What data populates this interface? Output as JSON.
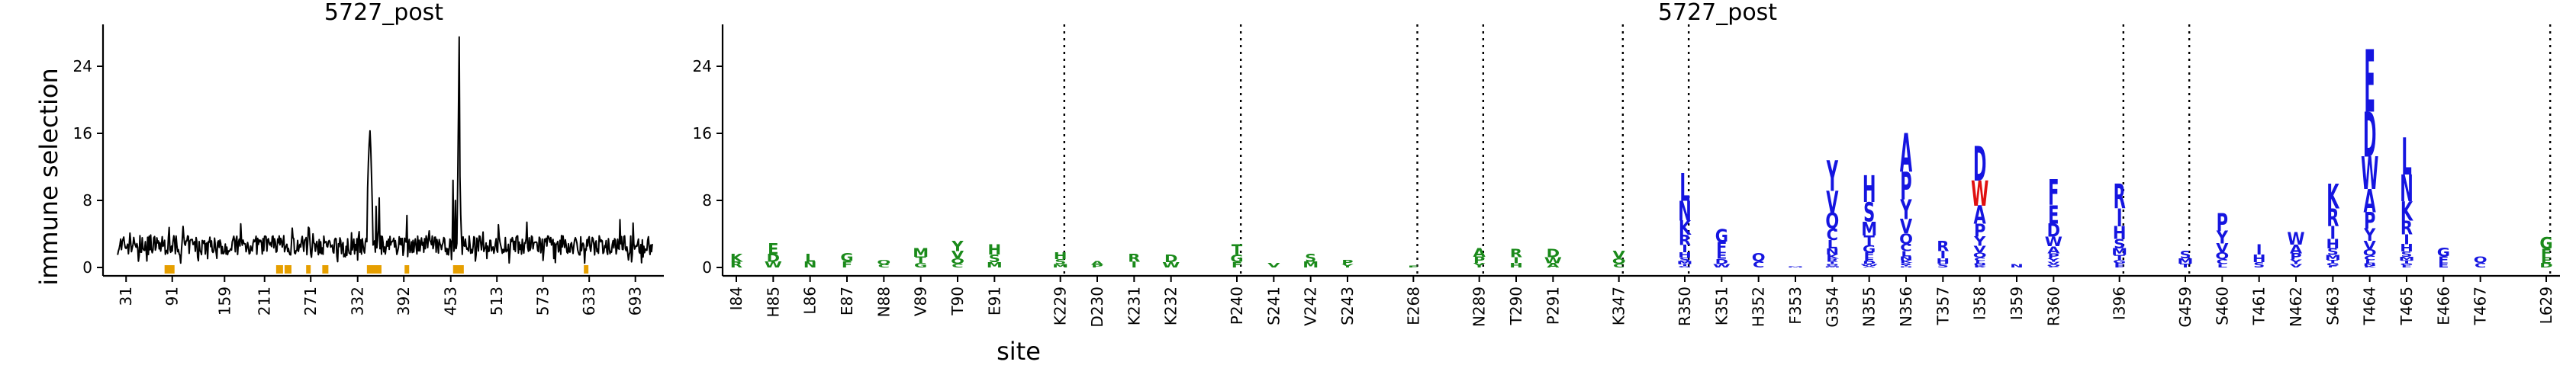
{
  "chart_data": [
    {
      "type": "line",
      "title": "5727_post",
      "ylabel": "immune selection",
      "xlim": [
        1,
        730
      ],
      "ylim": [
        -1,
        29
      ],
      "yticks": [
        0,
        8,
        16,
        24
      ],
      "xticks": [
        31,
        91,
        159,
        211,
        271,
        332,
        392,
        453,
        513,
        573,
        633,
        693
      ],
      "baseline_range": [
        1.5,
        3.8
      ],
      "peaks": [
        {
          "x": 345,
          "y": 9.5
        },
        {
          "x": 346,
          "y": 12.5
        },
        {
          "x": 347,
          "y": 14.7
        },
        {
          "x": 348,
          "y": 16.3
        },
        {
          "x": 349,
          "y": 14.2
        },
        {
          "x": 350,
          "y": 11.0
        },
        {
          "x": 351,
          "y": 7.5
        },
        {
          "x": 356,
          "y": 7.3
        },
        {
          "x": 360,
          "y": 8.3
        },
        {
          "x": 396,
          "y": 6.2
        },
        {
          "x": 456,
          "y": 10.4
        },
        {
          "x": 459,
          "y": 8.0
        },
        {
          "x": 462,
          "y": 9.6
        },
        {
          "x": 463,
          "y": 18.0
        },
        {
          "x": 464,
          "y": 27.5
        },
        {
          "x": 465,
          "y": 10.9
        },
        {
          "x": 466,
          "y": 6.3
        },
        {
          "x": 268,
          "y": 4.8
        },
        {
          "x": 180,
          "y": 5.2
        },
        {
          "x": 515,
          "y": 5.1
        },
        {
          "x": 552,
          "y": 5.4
        },
        {
          "x": 673,
          "y": 5.7
        },
        {
          "x": 690,
          "y": 5.3
        },
        {
          "x": 105,
          "y": 4.9
        }
      ],
      "highlighted_sites": [
        84,
        85,
        86,
        87,
        88,
        89,
        90,
        91,
        229,
        230,
        231,
        232,
        240,
        241,
        242,
        243,
        268,
        289,
        290,
        291,
        347,
        350,
        351,
        352,
        353,
        354,
        355,
        356,
        357,
        358,
        359,
        360,
        396,
        459,
        460,
        461,
        462,
        463,
        464,
        465,
        466,
        467,
        629
      ],
      "highlight_color": "#e69f00"
    },
    {
      "type": "logo",
      "title": "5727_post",
      "xlabel": "site",
      "ylim": [
        -1,
        29
      ],
      "yticks": [
        0,
        8,
        16,
        24
      ],
      "groups": [
        {
          "color": "#1a8a1a",
          "sites": [
            {
              "label": "I84",
              "h": 1.6
            },
            {
              "label": "H85",
              "h": 2.9
            },
            {
              "label": "L86",
              "h": 1.6
            },
            {
              "label": "E87",
              "h": 1.7
            },
            {
              "label": "N88",
              "h": 0.9
            },
            {
              "label": "V89",
              "h": 2.3
            },
            {
              "label": "T90",
              "h": 3.2
            },
            {
              "label": "E91",
              "h": 2.8
            }
          ]
        },
        {
          "color": "#1a8a1a",
          "sites": [
            {
              "label": "K229",
              "h": 1.8
            },
            {
              "label": "D230",
              "h": 0.8
            },
            {
              "label": "K231",
              "h": 1.6
            },
            {
              "label": "K232",
              "h": 1.5
            }
          ]
        },
        {
          "color": "#1a8a1a",
          "sites": [
            {
              "label": "P240",
              "h": 2.8
            },
            {
              "label": "S241",
              "h": 0.5
            },
            {
              "label": "V242",
              "h": 1.6
            },
            {
              "label": "S243",
              "h": 0.9
            }
          ]
        },
        {
          "color": "#1a8a1a",
          "sites": [
            {
              "label": "E268",
              "h": 0.2
            }
          ]
        },
        {
          "color": "#1a8a1a",
          "sites": [
            {
              "label": "N289",
              "h": 2.3
            },
            {
              "label": "T290",
              "h": 2.2
            },
            {
              "label": "P291",
              "h": 2.2
            }
          ]
        },
        {
          "color": "#1a8a1a",
          "sites": [
            {
              "label": "K347",
              "h": 2.0
            }
          ]
        },
        {
          "color": "#1515e0",
          "sites": [
            {
              "label": "R350",
              "h": 11.2
            },
            {
              "label": "K351",
              "h": 4.6
            },
            {
              "label": "H352",
              "h": 1.7
            },
            {
              "label": "F353",
              "h": 0.1
            },
            {
              "label": "G354",
              "h": 12.8
            },
            {
              "label": "N355",
              "h": 11.0
            },
            {
              "label": "N356",
              "h": 16.0
            },
            {
              "label": "T357",
              "h": 3.2
            },
            {
              "label": "I358",
              "h": 14.5
            },
            {
              "label": "I359",
              "h": 0.4
            },
            {
              "label": "R360",
              "h": 10.5
            }
          ]
        },
        {
          "color": "#1515e0",
          "sites": [
            {
              "label": "I396",
              "h": 10.0
            }
          ]
        },
        {
          "color": "#1515e0",
          "sites": [
            {
              "label": "G459",
              "h": 2.0
            },
            {
              "label": "S460",
              "h": 6.5
            },
            {
              "label": "T461",
              "h": 2.8
            },
            {
              "label": "N462",
              "h": 4.2
            },
            {
              "label": "S463",
              "h": 10.0
            },
            {
              "label": "T464",
              "h": 26.0
            },
            {
              "label": "T465",
              "h": 15.5
            },
            {
              "label": "E466",
              "h": 2.4
            },
            {
              "label": "T467",
              "h": 1.3
            }
          ]
        },
        {
          "color": "#1a8a1a",
          "sites": [
            {
              "label": "L629",
              "h": 3.6
            }
          ]
        }
      ]
    }
  ]
}
